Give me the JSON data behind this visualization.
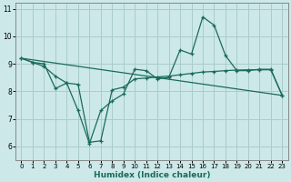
{
  "xlabel": "Humidex (Indice chaleur)",
  "background_color": "#cce8e8",
  "grid_color": "#aacccc",
  "line_color": "#1a6b5a",
  "x_values": [
    0,
    1,
    2,
    3,
    4,
    5,
    6,
    7,
    8,
    9,
    10,
    11,
    12,
    13,
    14,
    15,
    16,
    17,
    18,
    19,
    20,
    21,
    22,
    23
  ],
  "line1_y": [
    9.2,
    9.05,
    9.0,
    8.1,
    8.3,
    7.3,
    6.1,
    7.3,
    7.65,
    7.9,
    8.8,
    8.75,
    8.45,
    8.5,
    9.5,
    9.35,
    10.7,
    10.4,
    9.3,
    8.75,
    8.75,
    8.8,
    8.8,
    7.85
  ],
  "line2_y": [
    9.2,
    9.05,
    8.9,
    8.55,
    8.3,
    8.25,
    6.15,
    6.2,
    8.05,
    8.15,
    8.45,
    8.48,
    8.52,
    8.55,
    8.6,
    8.65,
    8.7,
    8.72,
    8.75,
    8.77,
    8.78,
    8.78,
    8.78,
    7.85
  ],
  "line3_x": [
    0,
    23
  ],
  "line3_y": [
    9.2,
    7.85
  ],
  "ylim": [
    5.5,
    11.2
  ],
  "xlim": [
    -0.5,
    23.5
  ],
  "yticks": [
    6,
    7,
    8,
    9,
    10,
    11
  ],
  "xticks": [
    0,
    1,
    2,
    3,
    4,
    5,
    6,
    7,
    8,
    9,
    10,
    11,
    12,
    13,
    14,
    15,
    16,
    17,
    18,
    19,
    20,
    21,
    22,
    23
  ]
}
